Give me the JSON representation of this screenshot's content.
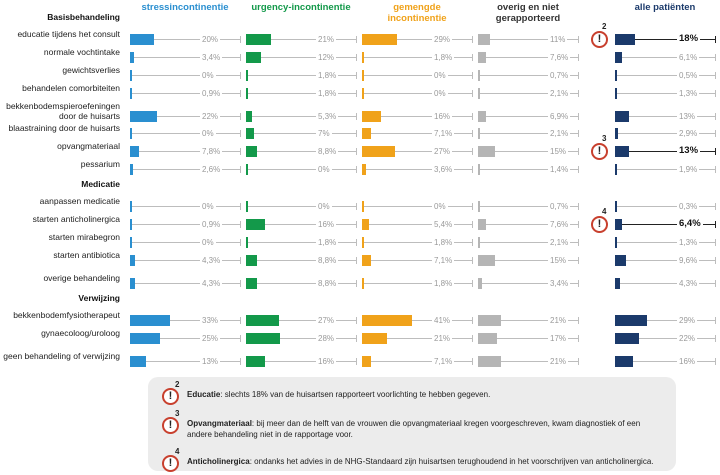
{
  "chart_data": {
    "type": "bar",
    "sections": [
      {
        "title": "Basisbehandeling",
        "categories": [
          "educatie tijdens het consult",
          "normale vochtintake",
          "gewichtsverlies",
          "behandelen comorbiteiten",
          "bekkenbodemspieroefeningen door de huisarts",
          "blaastraining door de huisarts",
          "opvangmateriaal",
          "pessarium"
        ]
      },
      {
        "title": "Medicatie",
        "categories": [
          "aanpassen medicatie",
          "starten anticholinergica",
          "starten mirabegron",
          "starten antibiotica",
          "overige behandeling"
        ]
      },
      {
        "title": "Verwijzing",
        "categories": [
          "bekkenbodemfysiotherapeut",
          "gynaecoloog/uroloog",
          "geen behandeling of verwijzing"
        ]
      }
    ],
    "xlim": [
      0,
      100
    ],
    "series": [
      {
        "name": "stressincontinentie",
        "color": "#2a8fd0",
        "values": [
          20,
          3.4,
          0,
          0.9,
          22,
          0,
          7.8,
          2.6,
          0,
          0.9,
          0,
          4.3,
          4.3,
          33,
          25,
          13
        ],
        "value_labels": [
          "20%",
          "3,4%",
          "0%",
          "0,9%",
          "22%",
          "0%",
          "7,8%",
          "2,6%",
          "0%",
          "0,9%",
          "0%",
          "4,3%",
          "4,3%",
          "33%",
          "25%",
          "13%"
        ]
      },
      {
        "name": "urgency-incontinentie",
        "color": "#13994a",
        "values": [
          21,
          12,
          1.8,
          1.8,
          5.3,
          7,
          8.8,
          0,
          0,
          16,
          1.8,
          8.8,
          8.8,
          27,
          28,
          16
        ],
        "value_labels": [
          "21%",
          "12%",
          "1,8%",
          "1,8%",
          "5,3%",
          "7%",
          "8,8%",
          "0%",
          "0%",
          "16%",
          "1,8%",
          "8,8%",
          "8,8%",
          "27%",
          "28%",
          "16%"
        ]
      },
      {
        "name": "gemengde incontinentie",
        "color": "#f0a21a",
        "values": [
          29,
          1.8,
          0,
          0,
          16,
          7.1,
          27,
          3.6,
          0,
          5.4,
          1.8,
          7.1,
          1.8,
          41,
          21,
          7.1
        ],
        "value_labels": [
          "29%",
          "1,8%",
          "0%",
          "0%",
          "16%",
          "7,1%",
          "27%",
          "3,6%",
          "0%",
          "5,4%",
          "1,8%",
          "7,1%",
          "1,8%",
          "41%",
          "21%",
          "7,1%"
        ]
      },
      {
        "name": "overig en niet gerapporteerd",
        "color": "#b5b5b5",
        "values": [
          11,
          7.6,
          0.7,
          2.1,
          6.9,
          2.1,
          15,
          1.4,
          0.7,
          7.6,
          2.1,
          15,
          3.4,
          21,
          17,
          21
        ],
        "value_labels": [
          "11%",
          "7,6%",
          "0,7%",
          "2,1%",
          "6,9%",
          "2,1%",
          "15%",
          "1,4%",
          "0,7%",
          "7,6%",
          "2,1%",
          "15%",
          "3,4%",
          "21%",
          "17%",
          "21%"
        ]
      },
      {
        "name": "alle patiënten",
        "color": "#1b3a6b",
        "values": [
          18,
          6.1,
          0.5,
          1.3,
          13,
          2.9,
          13,
          1.9,
          0.3,
          6.4,
          1.3,
          9.6,
          4.3,
          29,
          22,
          16
        ],
        "value_labels": [
          "18%",
          "6,1%",
          "0,5%",
          "1,3%",
          "13%",
          "2,9%",
          "13%",
          "1,9%",
          "0,3%",
          "6,4%",
          "1,3%",
          "9,6%",
          "4,3%",
          "29%",
          "22%",
          "16%"
        ],
        "markers": [
          2,
          null,
          null,
          null,
          null,
          null,
          3,
          null,
          null,
          4,
          null,
          null,
          null,
          null,
          null,
          null
        ]
      }
    ],
    "footnotes": [
      {
        "marker": 2,
        "term": "Educatie",
        "text": ": slechts 18% van de huisartsen rapporteert voorlichting te hebben gegeven."
      },
      {
        "marker": 3,
        "term": "Opvangmateriaal",
        "text": ": bij meer dan de helft van de vrouwen die opvangmateriaal kregen voorgeschreven, kwam diagnostiek of een andere behandeling niet in de rapportage voor."
      },
      {
        "marker": 4,
        "term": "Anticholinergica",
        "text": ": ondanks het advies in de NHG-Standaard zijn huisartsen terughoudend in het voorschrijven van anticholinergica."
      }
    ]
  }
}
